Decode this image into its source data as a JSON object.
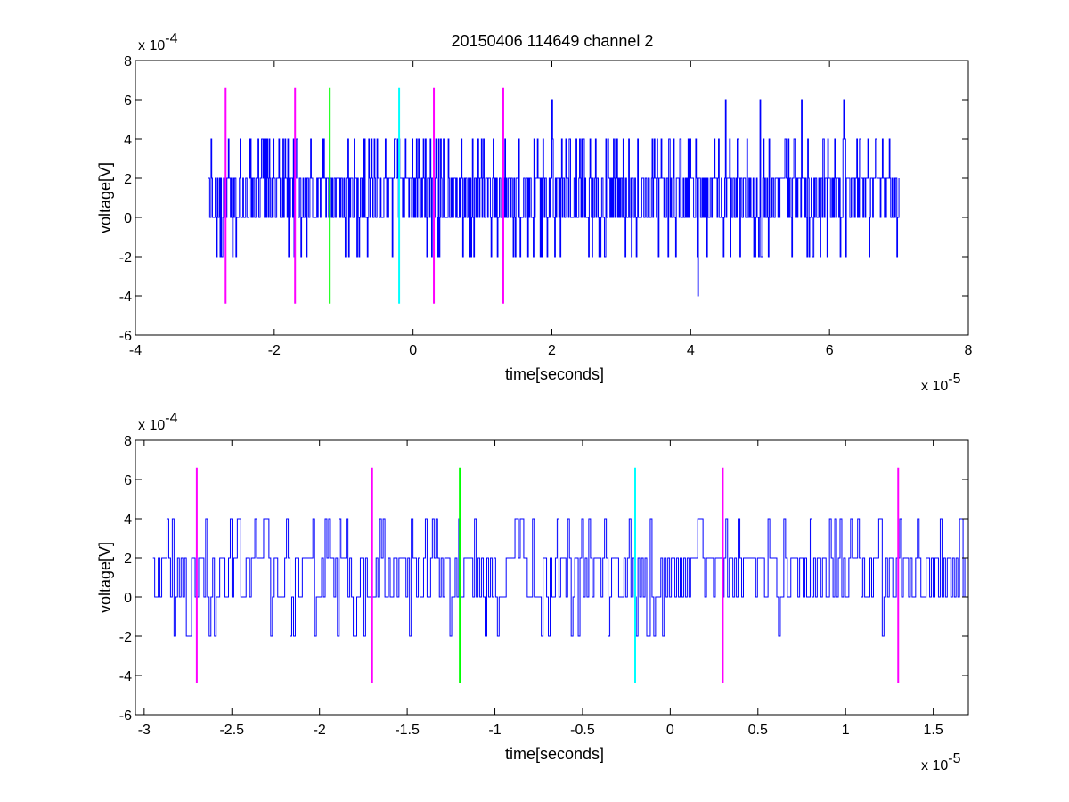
{
  "figure": {
    "title": "20150406 114649 channel 2"
  },
  "chart_data": [
    {
      "type": "line",
      "title": "20150406 114649 channel 2",
      "xlabel": "time[seconds]",
      "ylabel": "voltage[V]",
      "x_multiplier_label": "x 10",
      "x_exponent": "-5",
      "y_multiplier_label": "x 10",
      "y_exponent": "-4",
      "xlim": [
        -4,
        8
      ],
      "ylim": [
        -6,
        8
      ],
      "xticks": [
        "-4",
        "-2",
        "0",
        "2",
        "4",
        "6",
        "8"
      ],
      "yticks": [
        "-6",
        "-4",
        "-2",
        "0",
        "2",
        "4",
        "6",
        "8"
      ],
      "x_tick_values": [
        -4,
        -2,
        0,
        2,
        4,
        6,
        8
      ],
      "y_tick_values": [
        -6,
        -4,
        -2,
        0,
        2,
        4,
        6,
        8
      ],
      "series": [
        {
          "color": "#0000ff",
          "x_start": -2.95,
          "x_end": 7.0,
          "n_points": 1000,
          "baseline_levels": [
            0,
            2
          ],
          "spike_levels": [
            4,
            -2
          ],
          "extreme_points": [
            {
              "x": 2.0,
              "y": 6.0
            },
            {
              "x": 4.5,
              "y": 6.0
            },
            {
              "x": 5.0,
              "y": 6.0
            },
            {
              "x": 5.6,
              "y": 6.0
            },
            {
              "x": 6.2,
              "y": 6.0
            },
            {
              "x": 4.1,
              "y": -4.0
            }
          ]
        }
      ],
      "markers": [
        {
          "x": -2.7,
          "color": "#ff00ff",
          "y_from": -4.4,
          "y_to": 6.6
        },
        {
          "x": -1.7,
          "color": "#ff00ff",
          "y_from": -4.4,
          "y_to": 6.6
        },
        {
          "x": -1.2,
          "color": "#00ff00",
          "y_from": -4.4,
          "y_to": 6.6
        },
        {
          "x": -0.2,
          "color": "#00ffff",
          "y_from": -4.4,
          "y_to": 6.6
        },
        {
          "x": 0.3,
          "color": "#ff00ff",
          "y_from": -4.4,
          "y_to": 6.6
        },
        {
          "x": 1.3,
          "color": "#ff00ff",
          "y_from": -4.4,
          "y_to": 6.6
        }
      ],
      "grid": false
    },
    {
      "type": "line",
      "title": "",
      "xlabel": "time[seconds]",
      "ylabel": "voltage[V]",
      "x_multiplier_label": "x 10",
      "x_exponent": "-5",
      "y_multiplier_label": "x 10",
      "y_exponent": "-4",
      "xlim": [
        -3.05,
        1.7
      ],
      "ylim": [
        -6,
        8
      ],
      "xticks": [
        "-3",
        "-2.5",
        "-2",
        "-1.5",
        "-1",
        "-0.5",
        "0",
        "0.5",
        "1",
        "1.5"
      ],
      "yticks": [
        "-6",
        "-4",
        "-2",
        "0",
        "2",
        "4",
        "6",
        "8"
      ],
      "x_tick_values": [
        -3,
        -2.5,
        -2,
        -1.5,
        -1,
        -0.5,
        0,
        0.5,
        1,
        1.5
      ],
      "y_tick_values": [
        -6,
        -4,
        -2,
        0,
        2,
        4,
        6,
        8
      ],
      "series": [
        {
          "color": "#0000ff",
          "x_start": -2.95,
          "x_end": 1.7,
          "n_points": 465,
          "baseline_levels": [
            0,
            2
          ],
          "spike_levels": [
            4,
            -2
          ],
          "extreme_points": []
        }
      ],
      "markers": [
        {
          "x": -2.7,
          "color": "#ff00ff",
          "y_from": -4.4,
          "y_to": 6.6
        },
        {
          "x": -1.7,
          "color": "#ff00ff",
          "y_from": -4.4,
          "y_to": 6.6
        },
        {
          "x": -1.2,
          "color": "#00ff00",
          "y_from": -4.4,
          "y_to": 6.6
        },
        {
          "x": -0.2,
          "color": "#00ffff",
          "y_from": -4.4,
          "y_to": 6.6
        },
        {
          "x": 0.3,
          "color": "#ff00ff",
          "y_from": -4.4,
          "y_to": 6.6
        },
        {
          "x": 1.3,
          "color": "#ff00ff",
          "y_from": -4.4,
          "y_to": 6.6
        }
      ],
      "grid": false
    }
  ]
}
